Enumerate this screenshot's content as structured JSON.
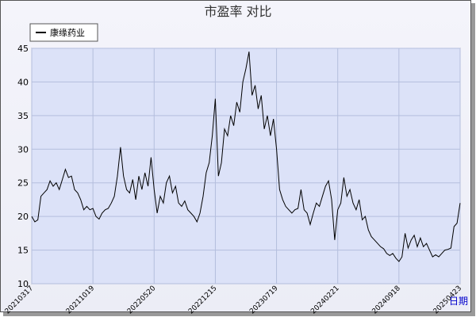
{
  "chart_data": {
    "type": "line",
    "title": "市盈率  对比",
    "x_label": "日期",
    "categories": [
      "20210317",
      null,
      null,
      null,
      null,
      null,
      null,
      null,
      null,
      null,
      null,
      null,
      null,
      null,
      null,
      null,
      null,
      null,
      null,
      null,
      "20211019",
      null,
      null,
      null,
      null,
      null,
      null,
      null,
      null,
      null,
      null,
      null,
      null,
      null,
      null,
      null,
      null,
      null,
      null,
      null,
      "20220520",
      null,
      null,
      null,
      null,
      null,
      null,
      null,
      null,
      null,
      null,
      null,
      null,
      null,
      null,
      null,
      null,
      null,
      null,
      null,
      "20221215",
      null,
      null,
      null,
      null,
      null,
      null,
      null,
      null,
      null,
      null,
      null,
      null,
      null,
      null,
      null,
      null,
      null,
      null,
      null,
      "20230719",
      null,
      null,
      null,
      null,
      null,
      null,
      null,
      null,
      null,
      null,
      null,
      null,
      null,
      null,
      null,
      null,
      null,
      null,
      null,
      "20240221",
      null,
      null,
      null,
      null,
      null,
      null,
      null,
      null,
      null,
      null,
      null,
      null,
      null,
      null,
      null,
      null,
      null,
      null,
      null,
      "20240918",
      null,
      null,
      null,
      null,
      null,
      null,
      null,
      null,
      null,
      null,
      null,
      null,
      null,
      null,
      null,
      null,
      null,
      null,
      null,
      "20250423"
    ],
    "series": [
      {
        "name": "康缘药业",
        "color": "#000000",
        "values": [
          20,
          19.2,
          19.5,
          23,
          23.5,
          24,
          25.3,
          24.5,
          25,
          24,
          25.5,
          27,
          25.8,
          26,
          24,
          23.5,
          22.5,
          21,
          21.5,
          21,
          21.2,
          20,
          19.6,
          20.5,
          21,
          21.2,
          22,
          23,
          26,
          30.3,
          26,
          24,
          23.5,
          25.5,
          22.5,
          26,
          24,
          26.5,
          24.5,
          28.8,
          24,
          20.5,
          23,
          22,
          25,
          26,
          23.5,
          24.5,
          22,
          21.5,
          22.3,
          21,
          20.5,
          20,
          19.2,
          20.5,
          23,
          26.5,
          28,
          32,
          37.5,
          26,
          28,
          33,
          32,
          35,
          33.5,
          37,
          35.5,
          40,
          42,
          44.5,
          38,
          39.5,
          36,
          38,
          33,
          35,
          32,
          34.5,
          30,
          24,
          22.5,
          21.5,
          21,
          20.5,
          21,
          21.2,
          24,
          21,
          20.5,
          18.8,
          20.5,
          22,
          21.5,
          23,
          24.5,
          25.3,
          22.5,
          16.5,
          21,
          22,
          25.8,
          23,
          24,
          22,
          21,
          22.5,
          19.5,
          20,
          18,
          17,
          16.5,
          16,
          15.5,
          15.2,
          14.5,
          14.2,
          14.5,
          13.8,
          13.3,
          14,
          17.5,
          15.3,
          16.5,
          17.2,
          15.5,
          16.8,
          15.5,
          16,
          15,
          14,
          14.3,
          14,
          14.5,
          15,
          15.1,
          15.3,
          18.5,
          19,
          22
        ]
      }
    ],
    "ylim": [
      10,
      45
    ],
    "yticks": [
      10,
      15,
      20,
      25,
      30,
      35,
      40,
      45
    ],
    "grid": true
  }
}
